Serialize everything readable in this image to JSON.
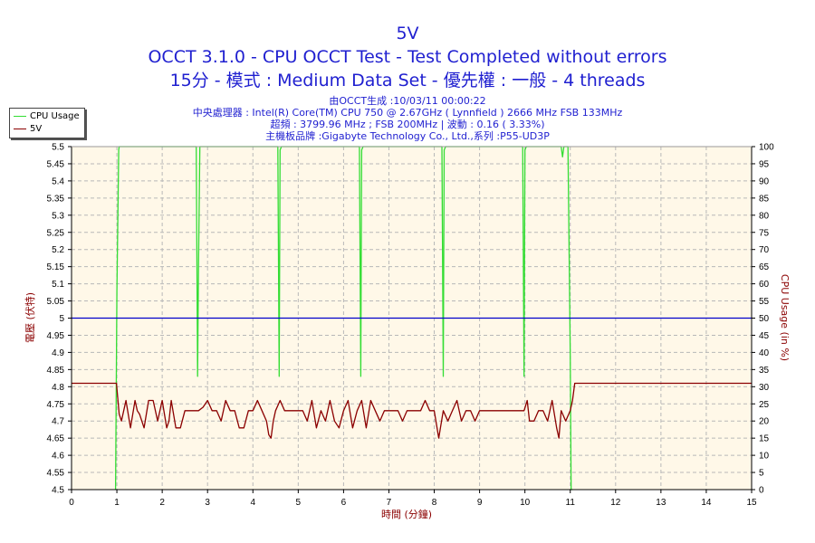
{
  "header": {
    "title": "5V",
    "subtitle1": "OCCT 3.1.0 - CPU OCCT Test - Test Completed without errors",
    "subtitle2": "15分 - 模式 : Medium Data Set - 優先權 : 一般 - 4 threads",
    "info": [
      "由OCCT生成 :10/03/11 00:00:22",
      "中央處理器 : Intel(R) Core(TM) CPU 750 @ 2.67GHz ( Lynnfield ) 2666 MHz FSB 133MHz",
      "超頻 : 3799.96 MHz ; FSB 200MHz | 波動 : 0.16 ( 3.33%)",
      "主機板品牌 :Gigabyte Technology Co., Ltd.,系列 :P55-UD3P"
    ]
  },
  "legend": {
    "cpu_label": "CPU Usage",
    "v5_label": "5V"
  },
  "colors": {
    "cpu": "#33dd33",
    "v5": "#8b0000",
    "nominal": "#0000cc",
    "plot_bg": "#fff8e8",
    "grid": "#b8b8b8",
    "title": "#1f1fd0"
  },
  "chart_data": {
    "type": "line",
    "xlabel": "時間 (分鐘)",
    "ylabel_left": "電壓 (伏特)",
    "ylabel_right": "CPU Usage (in %)",
    "xlim": [
      0,
      15
    ],
    "ylim_left": [
      4.5,
      5.5
    ],
    "ylim_right": [
      0,
      100
    ],
    "x_ticks": [
      "0",
      "1",
      "2",
      "3",
      "4",
      "5",
      "6",
      "7",
      "8",
      "9",
      "10",
      "11",
      "12",
      "13",
      "14",
      "15"
    ],
    "y_ticks_left": [
      "4.5",
      "4.55",
      "4.6",
      "4.65",
      "4.7",
      "4.75",
      "4.8",
      "4.85",
      "4.9",
      "4.95",
      "5",
      "5.05",
      "5.1",
      "5.15",
      "5.2",
      "5.25",
      "5.3",
      "5.35",
      "5.4",
      "5.45",
      "5.5"
    ],
    "y_ticks_right": [
      "0",
      "5",
      "10",
      "15",
      "20",
      "25",
      "30",
      "35",
      "40",
      "45",
      "50",
      "55",
      "60",
      "65",
      "70",
      "75",
      "80",
      "85",
      "90",
      "95",
      "100"
    ],
    "grid": true,
    "legend_position": "top-left",
    "series": [
      {
        "name": "CPU Usage",
        "axis": "right",
        "x": [
          0.97,
          1.0,
          1.04,
          1.05,
          1.1,
          2.75,
          2.78,
          2.8,
          2.83,
          2.86,
          4.55,
          4.58,
          4.6,
          4.63,
          4.66,
          6.35,
          6.38,
          6.4,
          6.43,
          6.46,
          8.17,
          8.2,
          8.22,
          8.25,
          8.28,
          9.95,
          9.98,
          10.0,
          10.03,
          10.06,
          10.8,
          10.83,
          10.86,
          10.95,
          11.0,
          11.02,
          11.05
        ],
        "y": [
          0,
          58,
          99,
          100,
          100,
          100,
          33,
          65,
          100,
          100,
          100,
          33,
          99,
          100,
          100,
          100,
          33,
          99,
          100,
          100,
          100,
          33,
          99,
          100,
          100,
          100,
          33,
          99,
          100,
          100,
          100,
          97,
          100,
          100,
          40,
          0,
          0
        ]
      },
      {
        "name": "5V",
        "axis": "left",
        "x": [
          0,
          0.5,
          0.99,
          1.05,
          1.1,
          1.2,
          1.3,
          1.4,
          1.45,
          1.5,
          1.55,
          1.6,
          1.65,
          1.7,
          1.8,
          1.9,
          2.0,
          2.05,
          2.1,
          2.15,
          2.2,
          2.3,
          2.4,
          2.5,
          2.6,
          2.7,
          2.8,
          2.9,
          3.0,
          3.1,
          3.2,
          3.3,
          3.4,
          3.5,
          3.6,
          3.7,
          3.8,
          3.9,
          4.0,
          4.1,
          4.2,
          4.3,
          4.35,
          4.4,
          4.45,
          4.5,
          4.6,
          4.7,
          4.8,
          4.9,
          5.0,
          5.1,
          5.2,
          5.3,
          5.4,
          5.5,
          5.6,
          5.7,
          5.8,
          5.9,
          6.0,
          6.1,
          6.2,
          6.3,
          6.4,
          6.5,
          6.6,
          6.7,
          6.8,
          6.9,
          7.0,
          7.1,
          7.2,
          7.3,
          7.4,
          7.5,
          7.6,
          7.7,
          7.8,
          7.9,
          8.0,
          8.1,
          8.2,
          8.3,
          8.4,
          8.5,
          8.6,
          8.7,
          8.8,
          8.9,
          9.0,
          9.1,
          9.2,
          9.3,
          9.4,
          9.5,
          9.6,
          9.7,
          9.8,
          9.9,
          9.98,
          10.05,
          10.1,
          10.2,
          10.3,
          10.4,
          10.5,
          10.6,
          10.7,
          10.75,
          10.8,
          10.9,
          11.0,
          11.05,
          11.1,
          11.2,
          12,
          13,
          14,
          15
        ],
        "y": [
          4.81,
          4.81,
          4.81,
          4.72,
          4.7,
          4.76,
          4.68,
          4.76,
          4.73,
          4.72,
          4.7,
          4.68,
          4.72,
          4.76,
          4.76,
          4.7,
          4.76,
          4.72,
          4.68,
          4.7,
          4.76,
          4.68,
          4.68,
          4.73,
          4.73,
          4.73,
          4.73,
          4.74,
          4.76,
          4.73,
          4.73,
          4.7,
          4.76,
          4.73,
          4.73,
          4.68,
          4.68,
          4.73,
          4.73,
          4.76,
          4.73,
          4.7,
          4.66,
          4.65,
          4.7,
          4.73,
          4.76,
          4.73,
          4.73,
          4.73,
          4.73,
          4.73,
          4.7,
          4.76,
          4.68,
          4.73,
          4.7,
          4.76,
          4.7,
          4.68,
          4.73,
          4.76,
          4.68,
          4.73,
          4.76,
          4.68,
          4.76,
          4.73,
          4.7,
          4.73,
          4.73,
          4.73,
          4.73,
          4.7,
          4.73,
          4.73,
          4.73,
          4.73,
          4.76,
          4.73,
          4.73,
          4.65,
          4.73,
          4.7,
          4.73,
          4.76,
          4.7,
          4.73,
          4.73,
          4.7,
          4.73,
          4.73,
          4.73,
          4.73,
          4.73,
          4.73,
          4.73,
          4.73,
          4.73,
          4.73,
          4.73,
          4.76,
          4.7,
          4.7,
          4.73,
          4.73,
          4.7,
          4.76,
          4.68,
          4.65,
          4.73,
          4.7,
          4.73,
          4.76,
          4.81,
          4.81,
          4.81,
          4.81,
          4.81,
          4.81
        ]
      },
      {
        "name": "",
        "axis": "left",
        "x": [
          0,
          15
        ],
        "y": [
          5.0,
          5.0
        ]
      }
    ]
  }
}
